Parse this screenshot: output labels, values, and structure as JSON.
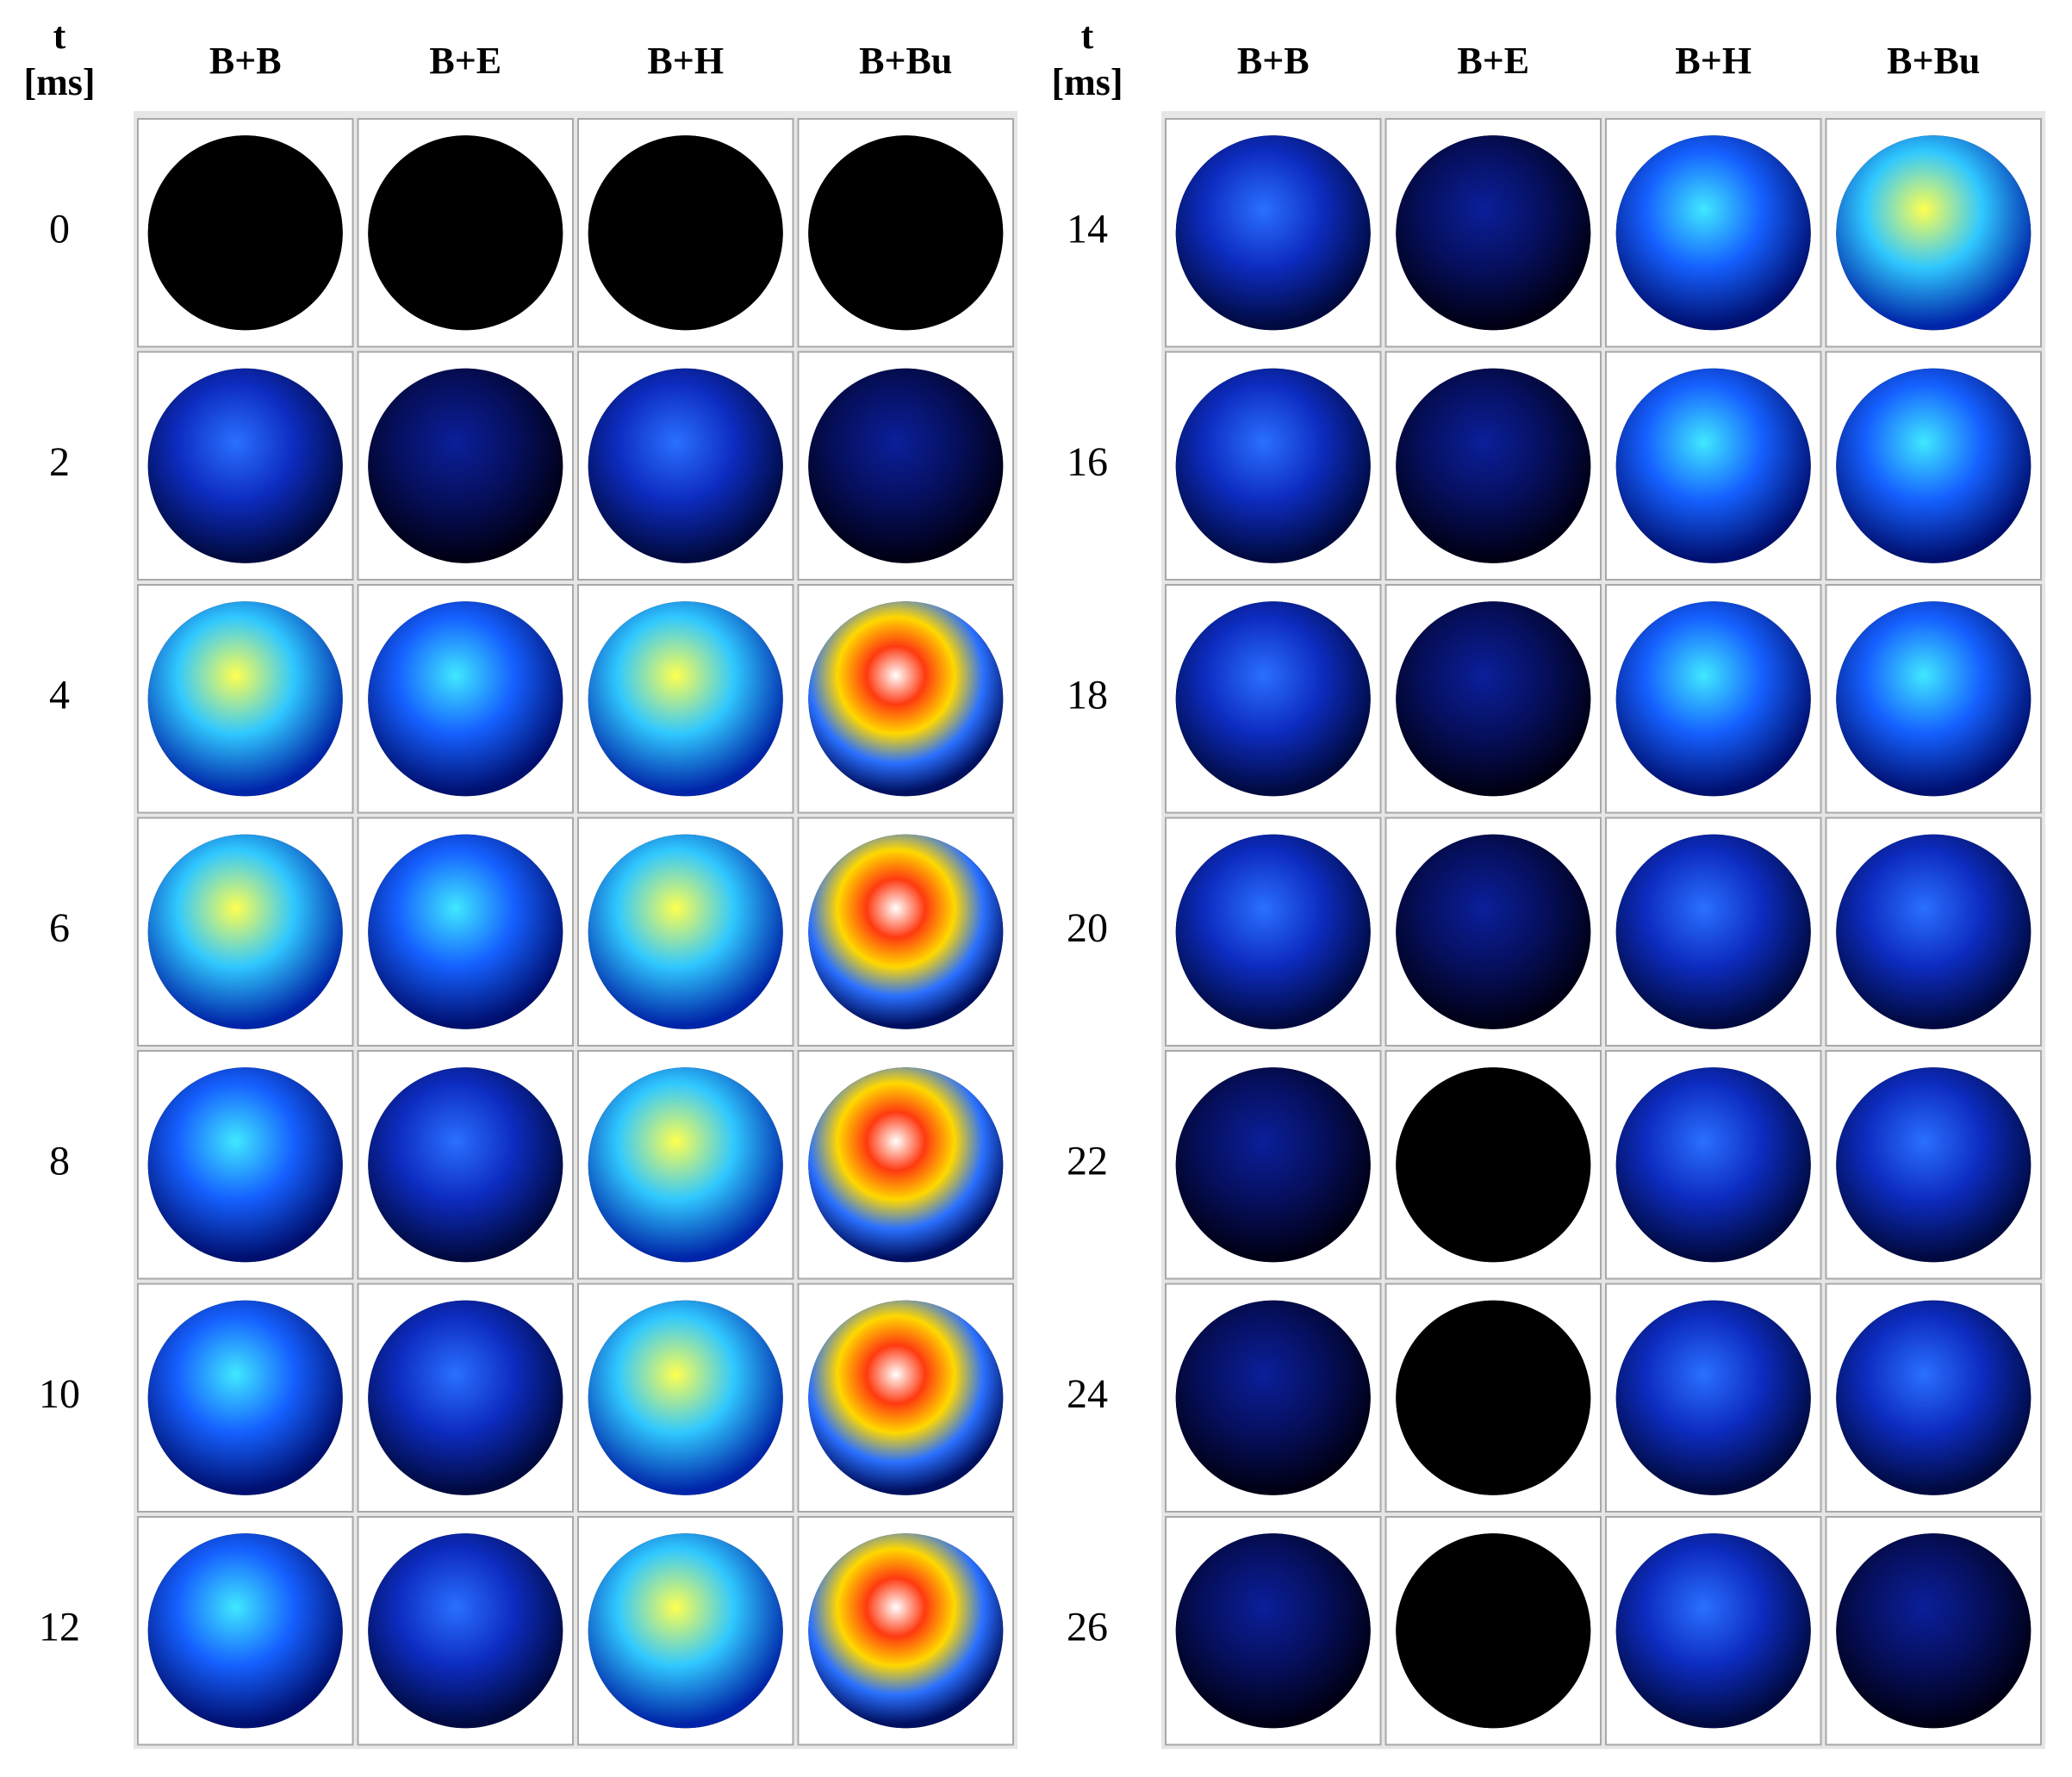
{
  "panels": [
    {
      "time_label": "t",
      "time_unit": "[ms]",
      "columns": [
        "B+B",
        "B+E",
        "B+H",
        "B+Bu"
      ],
      "times": [
        0,
        2,
        4,
        6,
        8,
        10,
        12
      ]
    },
    {
      "time_label": "t",
      "time_unit": "[ms]",
      "columns": [
        "B+B",
        "B+E",
        "B+H",
        "B+Bu"
      ],
      "times": [
        14,
        16,
        18,
        20,
        22,
        24,
        26
      ]
    }
  ]
}
